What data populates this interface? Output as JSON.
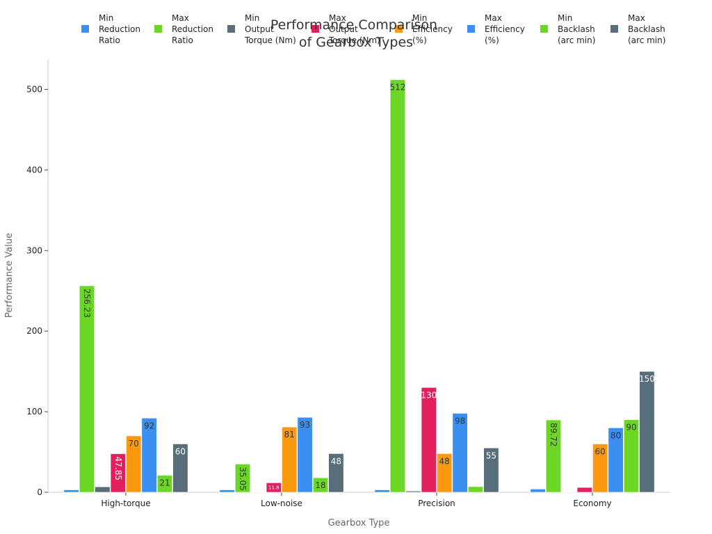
{
  "chart_data": {
    "type": "bar",
    "title": "Performance Comparison of Gearbox Types",
    "xlabel": "Gearbox Type",
    "ylabel": "Performance Value",
    "ylim": [
      0,
      540
    ],
    "yticks": [
      0,
      100,
      200,
      300,
      400,
      500
    ],
    "grid": false,
    "legend_position": "top",
    "categories": [
      "High-torque",
      "Low-noise",
      "Precision",
      "Economy"
    ],
    "series": [
      {
        "name": "Min Reduction Ratio",
        "color": "#3b8ff0",
        "values": [
          3,
          3,
          3,
          4
        ]
      },
      {
        "name": "Max Reduction Ratio",
        "color": "#6bd626",
        "values": [
          256.23,
          35.05,
          512,
          89.72
        ]
      },
      {
        "name": "Min Output Torque (Nm)",
        "color": "#586e7a",
        "values": [
          6.8,
          0.5,
          1.5,
          0.2
        ]
      },
      {
        "name": "Max Output Torque (Nm)",
        "color": "#e3205e",
        "values": [
          47.85,
          11.8,
          130,
          6
        ]
      },
      {
        "name": "Min Efficiency (%)",
        "color": "#fb9a10",
        "values": [
          70,
          81,
          48,
          60
        ]
      },
      {
        "name": "Max Efficiency (%)",
        "color": "#3b8ff0",
        "values": [
          92,
          93,
          98,
          80
        ]
      },
      {
        "name": "Min Backlash (arc min)",
        "color": "#6bd626",
        "values": [
          21,
          18,
          7,
          90
        ]
      },
      {
        "name": "Max Backlash (arc min)",
        "color": "#586e7a",
        "values": [
          60,
          48,
          55,
          150
        ]
      }
    ],
    "value_labels": [
      [
        "",
        "256.23",
        "",
        "47.85",
        "70",
        "92",
        "21",
        "60"
      ],
      [
        "",
        "35.05",
        "",
        "11.8",
        "81",
        "93",
        "18",
        "48"
      ],
      [
        "",
        "512",
        "",
        "130",
        "48",
        "98",
        "",
        "55"
      ],
      [
        "",
        "89.72",
        "",
        "",
        "60",
        "80",
        "90",
        "150"
      ]
    ],
    "legend_lines": [
      [
        "Min",
        "Reduction",
        "Ratio"
      ],
      [
        "Max",
        "Reduction",
        "Ratio"
      ],
      [
        "Min",
        "Output",
        "Torque (Nm)"
      ],
      [
        "Max",
        "Output",
        "Torque (Nm)"
      ],
      [
        "Min",
        "Efficiency",
        "(%)"
      ],
      [
        "Max",
        "Efficiency",
        "(%)"
      ],
      [
        "Min",
        "Backlash",
        "(arc min)"
      ],
      [
        "Max",
        "Backlash",
        "(arc min)"
      ]
    ],
    "title_lines": [
      "Performance Comparison",
      "of Gearbox Types"
    ]
  }
}
